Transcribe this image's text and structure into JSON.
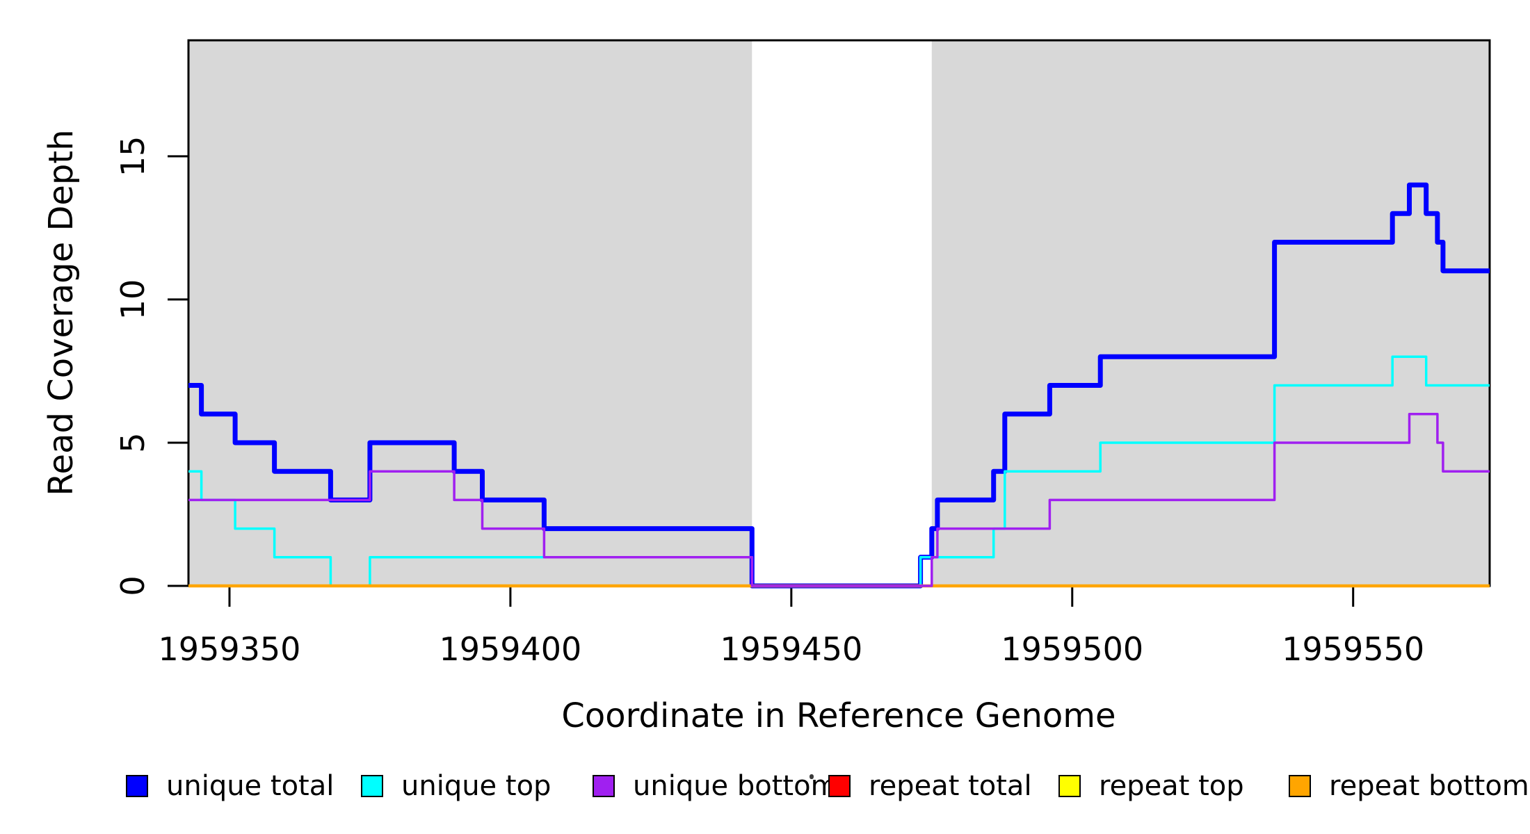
{
  "figure": {
    "background": "#ffffff",
    "frame_color": "#000000",
    "region_fill": "#d8d8d8"
  },
  "chart_data": {
    "type": "line",
    "subtype": "step-coverage",
    "title": "",
    "xlabel": "Coordinate in Reference Genome",
    "ylabel": "Read Coverage Depth",
    "xlim": [
      1959342.7,
      1959574.3
    ],
    "ylim": [
      0,
      19.05
    ],
    "grid": "off",
    "x_ticks": [
      1959350,
      1959400,
      1959450,
      1959500,
      1959550
    ],
    "x_tick_labels": [
      "1959350",
      "1959400",
      "1959450",
      "1959500",
      "1959550"
    ],
    "y_ticks": [
      0,
      5,
      10,
      15
    ],
    "y_tick_labels": [
      "0",
      "5",
      "10",
      "15"
    ],
    "background_regions": [
      {
        "name": "unique-region-left",
        "x0": 1959342.7,
        "x1": 1959443,
        "color": "#d8d8d8"
      },
      {
        "name": "unique-region-right",
        "x0": 1959475,
        "x1": 1959574.3,
        "color": "#d8d8d8"
      }
    ],
    "series": [
      {
        "name": "unique total",
        "color": "#0000ff",
        "width": 7,
        "x": [
          1959342.7,
          1959345,
          1959351,
          1959358,
          1959368,
          1959375,
          1959390,
          1959395,
          1959406,
          1959443,
          1959473,
          1959475,
          1959476,
          1959486,
          1959488,
          1959496,
          1959505,
          1959536,
          1959557,
          1959560,
          1959563,
          1959565,
          1959566,
          1959574.3
        ],
        "levels": [
          7,
          6,
          5,
          4,
          3,
          5,
          4,
          3,
          2,
          0,
          1,
          2,
          3,
          4,
          6,
          7,
          8,
          12,
          13,
          14,
          13,
          12,
          11
        ]
      },
      {
        "name": "unique top",
        "color": "#00ffff",
        "width": 3.5,
        "x": [
          1959342.7,
          1959345,
          1959351,
          1959358,
          1959368,
          1959375,
          1959443,
          1959473,
          1959486,
          1959488,
          1959505,
          1959536,
          1959557,
          1959563,
          1959574.3
        ],
        "levels": [
          4,
          3,
          2,
          1,
          0,
          1,
          0,
          1,
          2,
          4,
          5,
          7,
          8,
          7
        ]
      },
      {
        "name": "unique bottom",
        "color": "#a020f0",
        "width": 3.5,
        "x": [
          1959342.7,
          1959375,
          1959390,
          1959395,
          1959406,
          1959443,
          1959475,
          1959476,
          1959496,
          1959536,
          1959560,
          1959565,
          1959566,
          1959574.3
        ],
        "levels": [
          3,
          4,
          3,
          2,
          1,
          0,
          1,
          2,
          3,
          5,
          6,
          5,
          4
        ]
      },
      {
        "name": "repeat total",
        "color": "#ff0000",
        "width": 3.5,
        "x": [
          1959342.7,
          1959574.3
        ],
        "levels": [
          0
        ]
      },
      {
        "name": "repeat top",
        "color": "#ffff00",
        "width": 3.5,
        "x": [
          1959342.7,
          1959574.3
        ],
        "levels": [
          0
        ]
      },
      {
        "name": "repeat bottom",
        "color": "#ffa500",
        "width": 4.5,
        "x": [
          1959342.7,
          1959574.3
        ],
        "levels": [
          0
        ]
      }
    ],
    "draw_order": [
      "unique total",
      "unique top",
      "repeat total",
      "repeat top",
      "repeat bottom",
      "unique bottom"
    ],
    "legend": {
      "position": "bottom",
      "entries": [
        {
          "label": "unique total",
          "color": "#0000ff"
        },
        {
          "label": "unique top",
          "color": "#00ffff"
        },
        {
          "label": "unique bottom",
          "color": "#a020f0"
        },
        {
          "label": "repeat total",
          "color": "#ff0000"
        },
        {
          "label": "repeat top",
          "color": "#ffff00"
        },
        {
          "label": "repeat bottom",
          "color": "#ffa500"
        }
      ]
    }
  }
}
